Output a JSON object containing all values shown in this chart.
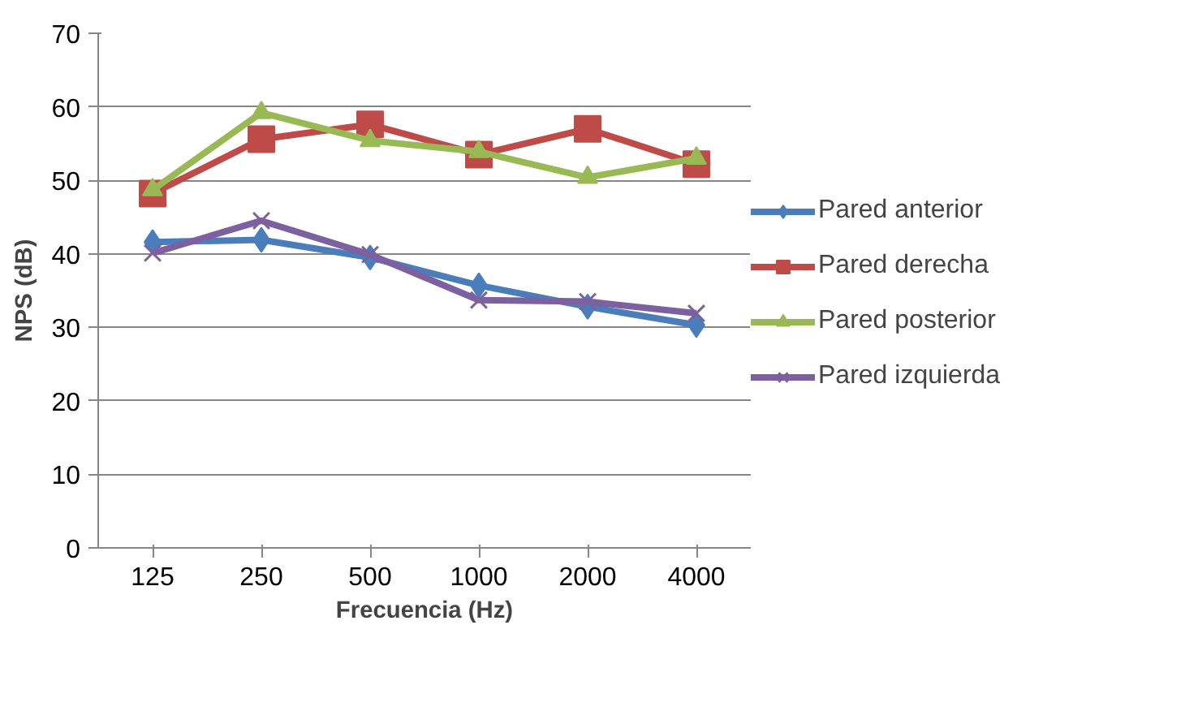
{
  "chart_data": {
    "type": "line",
    "xlabel": "Frecuencia (Hz)",
    "ylabel": "NPS (dB)",
    "categories": [
      "125",
      "250",
      "500",
      "1000",
      "2000",
      "4000"
    ],
    "series": [
      {
        "name": "Pared anterior",
        "color": "#4a7ebb",
        "marker": "diamond",
        "values": [
          41.6,
          41.9,
          39.5,
          35.7,
          32.8,
          30.3
        ]
      },
      {
        "name": "Pared derecha",
        "color": "#be4b48",
        "marker": "square",
        "values": [
          48.2,
          55.6,
          57.6,
          53.5,
          57.0,
          52.2
        ]
      },
      {
        "name": "Pared posterior",
        "color": "#98b954",
        "marker": "triangle",
        "values": [
          48.7,
          59.2,
          55.4,
          53.9,
          50.4,
          53.0
        ]
      },
      {
        "name": "Pared izquierda",
        "color": "#7d60a0",
        "marker": "cross",
        "values": [
          40.1,
          44.5,
          39.9,
          33.7,
          33.5,
          31.9
        ]
      }
    ],
    "ylim": [
      0,
      70
    ],
    "yticks": [
      0,
      10,
      20,
      30,
      40,
      50,
      60,
      70
    ],
    "grid": "y",
    "legend": "right",
    "line_style": "solid"
  }
}
